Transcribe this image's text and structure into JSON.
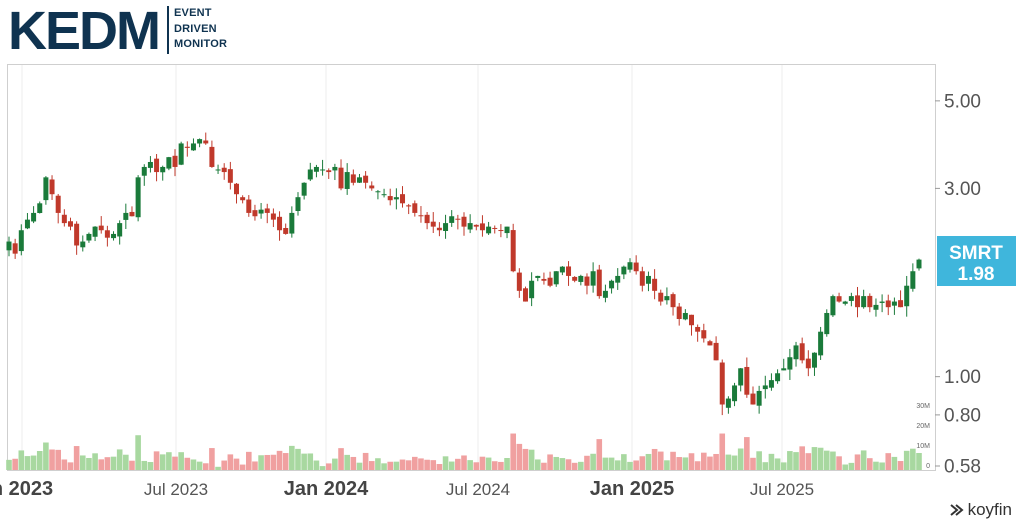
{
  "logo": {
    "main": "KEDM",
    "sub": [
      "EVENT",
      "DRIVEN",
      "MONITOR"
    ]
  },
  "branding": {
    "name": "koyfin"
  },
  "ticker": {
    "symbol": "SMRT",
    "price": "1.98",
    "color": "#3fb6dc"
  },
  "colors": {
    "up": "#1a7a3a",
    "down": "#c0392b",
    "vol_up": "#a8d8a0",
    "vol_down": "#f0a0a0"
  },
  "chart_data": {
    "type": "candlestick",
    "y_scale": "log",
    "ylim": [
      0.58,
      6.2
    ],
    "y_ticks": [
      "5.00",
      "3.00",
      "1.00",
      "0.80",
      "0.58"
    ],
    "volume_ticks": [
      "30M",
      "20M",
      "10M",
      "0"
    ],
    "x_ticks": [
      {
        "label": "n 2023",
        "bold": true
      },
      {
        "label": "Jul 2023",
        "bold": false
      },
      {
        "label": "Jan 2024",
        "bold": true
      },
      {
        "label": "Jul 2024",
        "bold": false
      },
      {
        "label": "Jan 2025",
        "bold": true
      },
      {
        "label": "Jul 2025",
        "bold": false
      }
    ],
    "weekly_close": [
      2.2,
      2.05,
      2.35,
      2.5,
      2.6,
      2.75,
      3.2,
      2.9,
      2.6,
      2.45,
      2.4,
      2.15,
      2.2,
      2.3,
      2.4,
      2.35,
      2.25,
      2.3,
      2.45,
      2.6,
      2.55,
      3.2,
      3.4,
      3.5,
      3.3,
      3.4,
      3.6,
      3.4,
      3.9,
      3.8,
      3.9,
      4.0,
      3.9,
      3.4,
      3.35,
      3.3,
      3.1,
      2.9,
      2.8,
      2.6,
      2.55,
      2.65,
      2.6,
      2.5,
      2.35,
      2.3,
      2.6,
      2.85,
      3.1,
      3.35,
      3.4,
      3.35,
      3.3,
      3.4,
      3.0,
      3.3,
      3.1,
      3.2,
      3.1,
      3.0,
      2.95,
      2.9,
      2.8,
      2.85,
      2.75,
      2.7,
      2.6,
      2.55,
      2.45,
      2.4,
      2.35,
      2.45,
      2.55,
      2.5,
      2.4,
      2.45,
      2.4,
      2.35,
      2.4,
      2.38,
      2.35,
      2.4,
      1.85,
      1.65,
      1.55,
      1.75,
      1.8,
      1.75,
      1.7,
      1.85,
      1.9,
      1.8,
      1.75,
      1.8,
      1.7,
      1.85,
      1.6,
      1.65,
      1.75,
      1.8,
      1.9,
      1.95,
      1.85,
      1.7,
      1.8,
      1.65,
      1.55,
      1.6,
      1.5,
      1.4,
      1.45,
      1.35,
      1.3,
      1.25,
      1.2,
      1.1,
      0.85,
      0.88,
      0.95,
      1.05,
      0.9,
      0.85,
      0.92,
      0.95,
      0.98,
      1.02,
      1.05,
      1.12,
      1.2,
      1.1,
      1.05,
      1.15,
      1.3,
      1.45,
      1.6,
      1.55,
      1.55,
      1.6,
      1.5,
      1.6,
      1.5,
      1.52,
      1.55,
      1.5,
      1.55,
      1.5,
      1.7,
      1.85,
      1.98
    ]
  }
}
